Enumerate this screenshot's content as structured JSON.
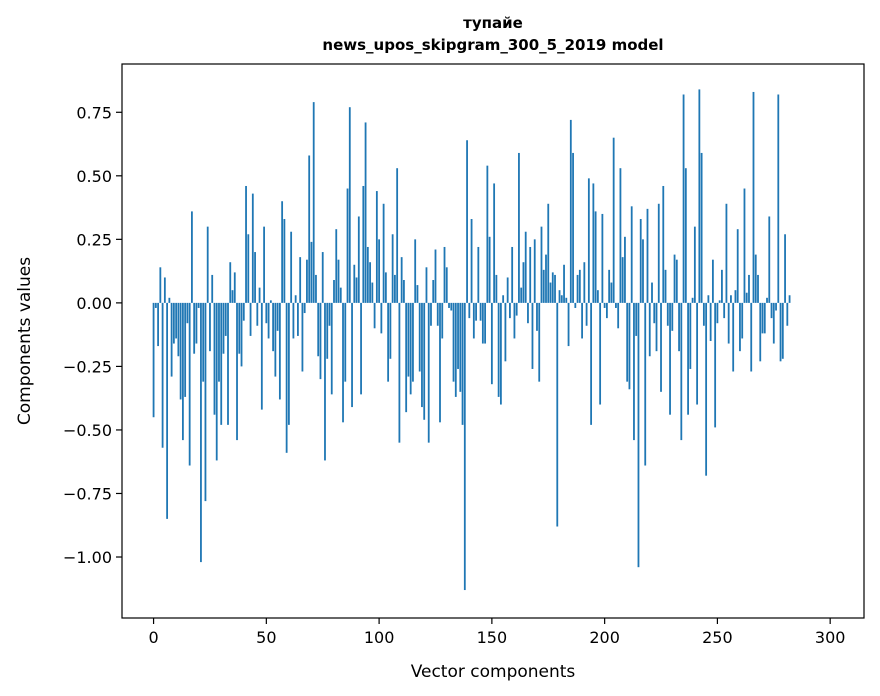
{
  "chart_data": {
    "type": "bar",
    "title": "тупайе",
    "subtitle": "news_upos_skipgram_300_5_2019 model",
    "xlabel": "Vector components",
    "ylabel": "Components values",
    "xlim": [
      -14,
      315
    ],
    "ylim": [
      -1.24,
      0.94
    ],
    "xticks": [
      0,
      50,
      100,
      150,
      200,
      250,
      300
    ],
    "xtick_labels": [
      "0",
      "50",
      "100",
      "150",
      "200",
      "250",
      "300"
    ],
    "yticks": [
      0.75,
      0.5,
      0.25,
      0.0,
      -0.25,
      -0.5,
      -0.75,
      -1.0
    ],
    "ytick_labels": [
      "0.75",
      "0.50",
      "0.25",
      "0.00",
      "−0.25",
      "−0.50",
      "−0.75",
      "−1.00"
    ],
    "bar_color": "#1f77b4",
    "values": [
      -0.45,
      -0.02,
      -0.17,
      0.14,
      -0.57,
      0.1,
      -0.85,
      0.02,
      -0.29,
      -0.16,
      -0.14,
      -0.21,
      -0.38,
      -0.54,
      -0.37,
      -0.08,
      -0.64,
      0.36,
      -0.2,
      -0.16,
      -0.02,
      -1.02,
      -0.31,
      -0.78,
      0.3,
      -0.19,
      0.11,
      -0.44,
      -0.62,
      -0.31,
      -0.48,
      -0.2,
      -0.13,
      -0.48,
      0.16,
      0.05,
      0.12,
      -0.54,
      -0.2,
      -0.25,
      -0.07,
      0.46,
      0.27,
      -0.13,
      0.43,
      0.2,
      -0.09,
      0.06,
      -0.42,
      0.3,
      -0.08,
      -0.14,
      0.01,
      -0.19,
      -0.29,
      -0.11,
      -0.38,
      0.4,
      0.33,
      -0.59,
      -0.48,
      0.28,
      -0.14,
      0.03,
      -0.13,
      0.18,
      -0.27,
      -0.04,
      0.17,
      0.58,
      0.24,
      0.79,
      0.11,
      -0.21,
      -0.3,
      0.2,
      -0.62,
      -0.22,
      -0.09,
      -0.36,
      0.09,
      0.29,
      0.17,
      0.06,
      -0.47,
      -0.31,
      0.45,
      0.77,
      -0.41,
      0.15,
      0.1,
      0.34,
      -0.36,
      0.46,
      0.71,
      0.22,
      0.16,
      0.08,
      -0.1,
      0.44,
      0.25,
      -0.12,
      0.39,
      0.12,
      -0.31,
      -0.22,
      0.27,
      0.11,
      0.53,
      -0.55,
      0.18,
      0.09,
      -0.43,
      -0.29,
      -0.36,
      -0.31,
      0.25,
      0.07,
      -0.27,
      -0.41,
      -0.46,
      0.14,
      -0.55,
      -0.09,
      0.09,
      0.21,
      -0.09,
      -0.47,
      -0.14,
      0.22,
      0.14,
      -0.02,
      -0.03,
      -0.31,
      -0.37,
      -0.26,
      -0.35,
      -0.48,
      -1.13,
      0.64,
      -0.06,
      0.33,
      -0.14,
      -0.07,
      0.22,
      -0.07,
      -0.16,
      -0.16,
      0.54,
      0.26,
      -0.32,
      0.47,
      0.11,
      -0.37,
      -0.4,
      0.03,
      -0.23,
      0.1,
      -0.06,
      0.22,
      -0.14,
      -0.05,
      0.59,
      0.06,
      0.16,
      0.28,
      -0.08,
      0.22,
      -0.26,
      0.25,
      -0.11,
      -0.31,
      0.3,
      0.13,
      0.19,
      0.39,
      0.08,
      0.12,
      0.11,
      -0.88,
      0.05,
      0.03,
      0.15,
      0.02,
      -0.17,
      0.72,
      0.59,
      -0.02,
      0.11,
      0.13,
      -0.14,
      0.16,
      -0.09,
      0.49,
      -0.48,
      0.47,
      0.36,
      0.05,
      -0.4,
      0.35,
      -0.02,
      -0.06,
      0.13,
      0.08,
      0.65,
      -0.02,
      -0.1,
      0.53,
      0.18,
      0.26,
      -0.31,
      -0.34,
      0.38,
      -0.54,
      -0.13,
      -1.04,
      0.33,
      0.25,
      -0.64,
      0.37,
      -0.21,
      0.08,
      -0.08,
      -0.19,
      0.39,
      -0.35,
      0.46,
      0.13,
      -0.09,
      -0.44,
      -0.11,
      0.19,
      0.17,
      -0.19,
      -0.54,
      0.82,
      0.53,
      -0.44,
      -0.26,
      0.02,
      0.3,
      -0.4,
      0.84,
      0.59,
      -0.09,
      -0.68,
      0.03,
      -0.15,
      0.17,
      -0.49,
      -0.08,
      0.01,
      0.13,
      -0.06,
      0.39,
      -0.16,
      0.03,
      -0.27,
      0.05,
      0.29,
      -0.19,
      -0.14,
      0.45,
      0.04,
      0.11,
      -0.27,
      0.83,
      0.19,
      0.11,
      -0.23,
      -0.12,
      -0.12,
      0.02,
      0.34,
      -0.06,
      -0.16,
      -0.03,
      0.82,
      -0.23,
      -0.22,
      0.27,
      -0.09,
      0.03
    ]
  }
}
